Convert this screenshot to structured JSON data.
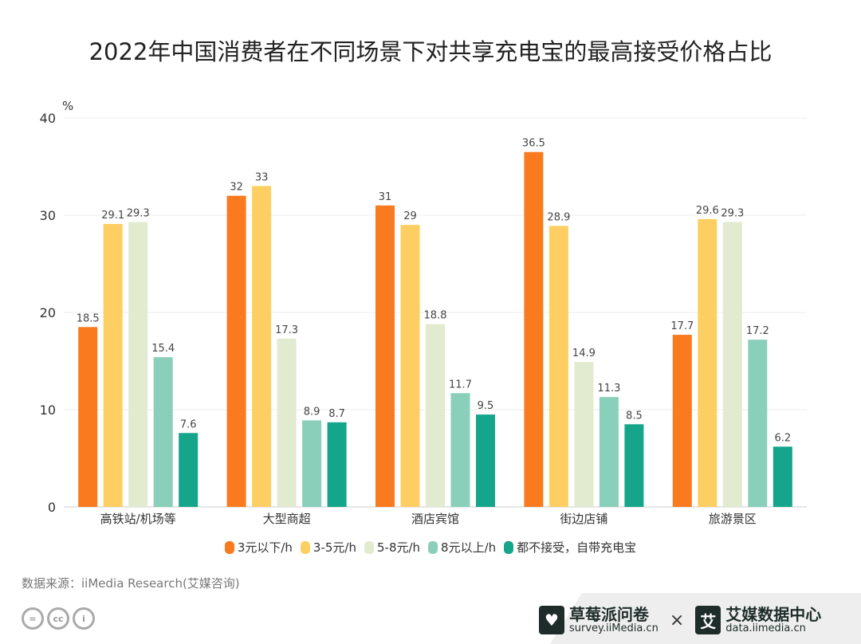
{
  "title": "2022年中国消费者在不同场景下对共享充电宝的最高接受价格占比",
  "chart_data": {
    "type": "bar",
    "title": "2022年中国消费者在不同场景下对共享充电宝的最高接受价格占比",
    "ylabel": "%",
    "ylim": [
      0,
      40
    ],
    "yticks": [
      0,
      10,
      20,
      30,
      40
    ],
    "grid": true,
    "legend_position": "bottom",
    "categories": [
      "高铁站/机场等",
      "大型商超",
      "酒店宾馆",
      "街边店铺",
      "旅游景区"
    ],
    "series": [
      {
        "name": "3元以下/h",
        "color": "#F97A1F",
        "values": [
          18.5,
          32,
          31,
          36.5,
          17.7
        ]
      },
      {
        "name": "3-5元/h",
        "color": "#FDCF62",
        "values": [
          29.1,
          33,
          29,
          28.9,
          29.6
        ]
      },
      {
        "name": "5-8元/h",
        "color": "#E2EACF",
        "values": [
          29.3,
          17.3,
          18.8,
          14.9,
          29.3
        ]
      },
      {
        "name": "8元以上/h",
        "color": "#8ACFBA",
        "values": [
          15.4,
          8.9,
          11.7,
          11.3,
          17.2
        ]
      },
      {
        "name": "都不接受，自带充电宝",
        "color": "#14A58B",
        "values": [
          7.6,
          8.7,
          9.5,
          8.5,
          6.2
        ]
      }
    ]
  },
  "source": "数据来源：iiMedia Research(艾媒咨询)",
  "footer": {
    "cc_icons": [
      "equals-icon",
      "cc-icon",
      "person-icon"
    ],
    "logo1_name": "草莓派问卷",
    "logo1_url": "survey.iiMedia.cn",
    "times": "×",
    "logo2_mark": "艾",
    "logo2_name": "艾媒数据中心",
    "logo2_url": "data.iimedia.cn"
  }
}
